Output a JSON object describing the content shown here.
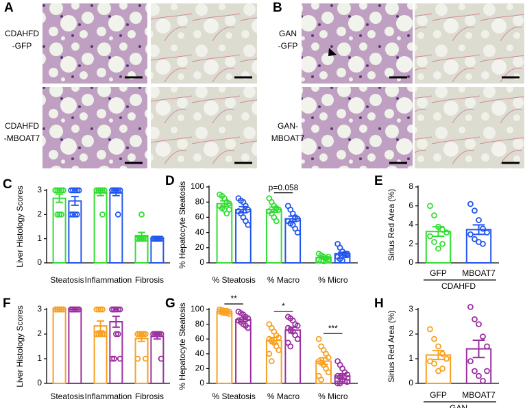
{
  "figure_panels": [
    {
      "letter": "A",
      "rows": [
        [
          "CDAHFD",
          "-GFP"
        ],
        [
          "CDAHFD",
          "-MBOAT7"
        ]
      ]
    },
    {
      "letter": "B",
      "rows": [
        [
          "GAN",
          "-GFP"
        ],
        [
          "GAN-",
          "MBOAT7"
        ]
      ]
    }
  ],
  "chart_data": [
    {
      "type": "grouped-bar",
      "panel": "C",
      "ylabel": "Liver Histology Scores",
      "categories": [
        "Steatosis",
        "Inflammation",
        "Fibrosis"
      ],
      "ylim": [
        0,
        3
      ],
      "yticks": [
        0,
        1,
        2,
        3
      ],
      "series": [
        {
          "color": "#33dd33",
          "values": [
            2.67,
            2.89,
            1.13
          ],
          "errors": [
            0.17,
            0.11,
            0.13
          ],
          "points": [
            [
              3,
              3,
              3,
              3,
              3,
              3,
              2,
              2,
              2
            ],
            [
              3,
              3,
              3,
              3,
              3,
              3,
              3,
              3,
              2
            ],
            [
              1,
              1,
              1,
              1,
              1,
              1,
              1,
              2
            ]
          ]
        },
        {
          "color": "#2255ee",
          "values": [
            2.56,
            2.89,
            1.0
          ],
          "errors": [
            0.18,
            0.11,
            0
          ],
          "points": [
            [
              3,
              3,
              3,
              3,
              3,
              2,
              2,
              2,
              2
            ],
            [
              3,
              3,
              3,
              3,
              3,
              3,
              3,
              3,
              2
            ],
            [
              1,
              1,
              1,
              1,
              1,
              1,
              1,
              1,
              1
            ]
          ]
        }
      ]
    },
    {
      "type": "grouped-bar",
      "panel": "D",
      "ylabel": "% Hepatocyte Steatosis",
      "categories": [
        "% Steatosis",
        "% Macro",
        "% Micro"
      ],
      "ylim": [
        0,
        100
      ],
      "yticks": [
        0,
        20,
        40,
        60,
        80,
        100
      ],
      "annotations": [
        null,
        "p=0.058",
        null
      ],
      "series": [
        {
          "color": "#33dd33",
          "values": [
            78,
            70,
            7
          ],
          "errors": [
            3.5,
            3.5,
            1.5
          ],
          "points": [
            [
              90,
              88,
              85,
              80,
              78,
              75,
              72,
              70,
              65,
              70
            ],
            [
              85,
              80,
              75,
              72,
              70,
              68,
              65,
              60,
              55,
              70
            ],
            [
              12,
              10,
              8,
              6,
              5,
              4,
              3,
              2,
              5,
              8
            ]
          ]
        },
        {
          "color": "#2255ee",
          "values": [
            70,
            58,
            12
          ],
          "errors": [
            4,
            3.5,
            2
          ],
          "points": [
            [
              85,
              82,
              80,
              75,
              70,
              68,
              65,
              60,
              55,
              50
            ],
            [
              75,
              70,
              65,
              60,
              58,
              55,
              52,
              50,
              45,
              40
            ],
            [
              25,
              20,
              15,
              12,
              10,
              8,
              5,
              3,
              10,
              12
            ]
          ]
        }
      ]
    },
    {
      "type": "bar",
      "panel": "E",
      "ylabel": "Sirius Red Area (%)",
      "group_label": "CDAHFD",
      "categories": [
        "GFP",
        "MBOAT7"
      ],
      "ylim": [
        0,
        8
      ],
      "yticks": [
        0,
        2,
        4,
        6,
        8
      ],
      "colors": [
        "#33dd33",
        "#2255ee"
      ],
      "values": [
        3.3,
        3.5
      ],
      "errors": [
        0.5,
        0.5
      ],
      "points": [
        [
          6.0,
          5.0,
          3.8,
          3.5,
          3.2,
          2.8,
          2.2,
          1.5,
          2.0
        ],
        [
          6.2,
          5.5,
          4.5,
          3.6,
          3.2,
          3.0,
          2.5,
          2.2,
          2.0
        ]
      ]
    },
    {
      "type": "grouped-bar",
      "panel": "F",
      "ylabel": "Liver Histology Scores",
      "categories": [
        "Steatosis",
        "Inflammation",
        "Fibrosis"
      ],
      "ylim": [
        0,
        3
      ],
      "yticks": [
        0,
        1,
        2,
        3
      ],
      "series": [
        {
          "color": "#f8a020",
          "values": [
            3,
            2.33,
            1.82
          ],
          "errors": [
            0,
            0.2,
            0.12
          ],
          "points": [
            [
              3,
              3,
              3,
              3,
              3,
              3,
              3,
              3,
              3,
              3,
              3,
              3
            ],
            [
              3,
              3,
              3,
              3,
              2,
              2,
              2,
              2,
              2,
              2,
              2,
              2
            ],
            [
              2,
              2,
              2,
              2,
              2,
              2,
              2,
              2,
              2,
              1,
              1
            ]
          ]
        },
        {
          "color": "#9a2fa0",
          "values": [
            3,
            2.5,
            1.9
          ],
          "errors": [
            0,
            0.22,
            0.1
          ],
          "points": [
            [
              3,
              3,
              3,
              3,
              3,
              3,
              3,
              3,
              3,
              3,
              3,
              3
            ],
            [
              3,
              3,
              3,
              3,
              3,
              3,
              3,
              2,
              2,
              1,
              1,
              1,
              3
            ],
            [
              2,
              2,
              2,
              2,
              2,
              2,
              2,
              2,
              2,
              1
            ]
          ]
        }
      ]
    },
    {
      "type": "grouped-bar",
      "panel": "G",
      "ylabel": "% Hepatocyte Steatosis",
      "categories": [
        "% Steatosis",
        "% Macro",
        "% Micro"
      ],
      "ylim": [
        0,
        100
      ],
      "yticks": [
        0,
        20,
        40,
        60,
        80,
        100
      ],
      "annotations": [
        "**",
        "*",
        "***"
      ],
      "series": [
        {
          "color": "#f8a020",
          "values": [
            97,
            58,
            30
          ],
          "errors": [
            0.6,
            4,
            4.5
          ],
          "points": [
            [
              100,
              99,
              98,
              98,
              97,
              97,
              96,
              95,
              95,
              94
            ],
            [
              80,
              75,
              70,
              65,
              62,
              60,
              58,
              55,
              50,
              45,
              40,
              30
            ],
            [
              60,
              50,
              45,
              40,
              35,
              30,
              28,
              25,
              20,
              15,
              10,
              5
            ]
          ]
        },
        {
          "color": "#9a2fa0",
          "values": [
            86,
            72,
            10
          ],
          "errors": [
            2.5,
            4,
            3
          ],
          "points": [
            [
              97,
              95,
              93,
              90,
              88,
              85,
              83,
              80,
              78,
              75
            ],
            [
              90,
              88,
              85,
              80,
              78,
              75,
              72,
              70,
              65,
              60,
              55,
              50
            ],
            [
              30,
              25,
              20,
              15,
              12,
              10,
              8,
              5,
              3,
              2,
              0,
              0
            ]
          ]
        }
      ]
    },
    {
      "type": "bar",
      "panel": "H",
      "ylabel": "Sirius Red Area (%)",
      "group_label": "GAN",
      "categories": [
        "GFP",
        "MBOAT7"
      ],
      "ylim": [
        0,
        3
      ],
      "yticks": [
        0,
        1,
        2,
        3
      ],
      "colors": [
        "#f8a020",
        "#9a2fa0"
      ],
      "values": [
        1.15,
        1.4
      ],
      "errors": [
        0.18,
        0.35
      ],
      "points": [
        [
          2.2,
          1.8,
          1.5,
          1.2,
          1.0,
          0.9,
          0.8,
          0.5,
          0.6,
          1.0
        ],
        [
          3.1,
          2.6,
          2.4,
          1.9,
          1.5,
          0.9,
          0.5,
          0.3,
          0.1,
          0.5
        ]
      ]
    }
  ]
}
